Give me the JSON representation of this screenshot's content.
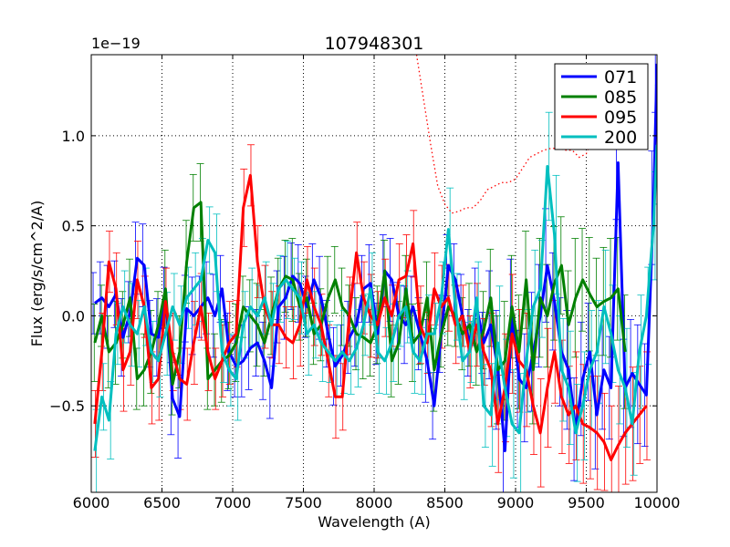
{
  "chart_data": {
    "type": "line",
    "title": "107948301",
    "xlabel": "Wavelength (A)",
    "ylabel": "Flux (erg/s/cm^2/A)",
    "offset_label": "1e−19",
    "xlim": [
      6000,
      10000
    ],
    "ylim": [
      -0.98,
      1.45
    ],
    "x_ticks": [
      6000,
      6500,
      7000,
      7500,
      8000,
      8500,
      9000,
      9500,
      10000
    ],
    "x_tick_labels": [
      "6000",
      "6500",
      "7000",
      "7500",
      "8000",
      "8500",
      "9000",
      "9500",
      "10000"
    ],
    "y_ticks": [
      -0.5,
      0.0,
      0.5,
      1.0
    ],
    "y_tick_labels": [
      "−0.5",
      "0.0",
      "0.5",
      "1.0"
    ],
    "grid": true,
    "legend_position": "top-right",
    "series": [
      {
        "name": "071",
        "color": "#0000ff",
        "x": [
          6025,
          6075,
          6125,
          6175,
          6225,
          6275,
          6325,
          6375,
          6425,
          6475,
          6525,
          6575,
          6625,
          6675,
          6725,
          6775,
          6825,
          6875,
          6925,
          6975,
          7025,
          7075,
          7125,
          7175,
          7225,
          7275,
          7325,
          7375,
          7425,
          7475,
          7525,
          7575,
          7625,
          7675,
          7725,
          7775,
          7825,
          7875,
          7925,
          7975,
          8025,
          8075,
          8125,
          8175,
          8225,
          8275,
          8325,
          8375,
          8425,
          8475,
          8525,
          8575,
          8625,
          8675,
          8725,
          8775,
          8825,
          8875,
          8925,
          8975,
          9025,
          9075,
          9125,
          9175,
          9225,
          9275,
          9325,
          9375,
          9425,
          9475,
          9525,
          9575,
          9625,
          9675,
          9725,
          9775,
          9825,
          9875,
          9925,
          9975,
          10000
        ],
        "y": [
          0.07,
          0.1,
          0.05,
          0.12,
          -0.12,
          0.02,
          0.32,
          0.28,
          -0.1,
          -0.12,
          0.1,
          -0.46,
          -0.56,
          0.04,
          0.0,
          0.05,
          0.1,
          0.0,
          0.15,
          -0.2,
          -0.28,
          -0.25,
          -0.18,
          -0.15,
          -0.25,
          -0.4,
          0.05,
          0.1,
          0.22,
          0.18,
          0.05,
          0.2,
          0.1,
          -0.1,
          -0.28,
          -0.22,
          -0.12,
          -0.05,
          0.15,
          0.18,
          -0.1,
          0.25,
          0.2,
          0.0,
          -0.05,
          0.05,
          -0.1,
          -0.25,
          -0.5,
          -0.1,
          0.28,
          0.2,
          0.0,
          -0.15,
          0.05,
          -0.15,
          -0.05,
          -0.3,
          -0.75,
          0.0,
          -0.35,
          -0.4,
          -0.2,
          0.0,
          0.28,
          0.08,
          -0.2,
          -0.3,
          -0.63,
          -0.35,
          -0.2,
          -0.55,
          -0.3,
          -0.4,
          0.85,
          -0.4,
          -0.32,
          -0.38,
          -0.44,
          0.6,
          1.4
        ]
      },
      {
        "name": "085",
        "color": "#008000",
        "x": [
          6025,
          6075,
          6125,
          6175,
          6225,
          6275,
          6325,
          6375,
          6425,
          6475,
          6525,
          6575,
          6625,
          6675,
          6725,
          6775,
          6825,
          6875,
          6925,
          6975,
          7025,
          7075,
          7125,
          7175,
          7225,
          7275,
          7325,
          7375,
          7425,
          7475,
          7525,
          7575,
          7625,
          7675,
          7725,
          7775,
          7825,
          7875,
          7925,
          7975,
          8025,
          8075,
          8125,
          8175,
          8225,
          8275,
          8325,
          8375,
          8425,
          8475,
          8525,
          8575,
          8625,
          8675,
          8725,
          8775,
          8825,
          8875,
          8925,
          8975,
          9025,
          9075,
          9125,
          9175,
          9225,
          9275,
          9325,
          9375,
          9425,
          9475,
          9525,
          9575,
          9625,
          9675,
          9725,
          9775
        ],
        "y": [
          -0.15,
          0.0,
          -0.2,
          -0.15,
          -0.05,
          0.1,
          -0.35,
          -0.3,
          -0.2,
          -0.05,
          0.15,
          -0.38,
          -0.2,
          0.3,
          0.6,
          0.63,
          -0.35,
          -0.3,
          -0.25,
          -0.22,
          -0.15,
          0.05,
          0.0,
          -0.05,
          -0.15,
          0.0,
          0.15,
          0.22,
          0.2,
          0.05,
          0.1,
          -0.1,
          -0.05,
          0.1,
          0.2,
          0.05,
          0.0,
          -0.1,
          -0.12,
          -0.15,
          -0.05,
          0.25,
          -0.25,
          -0.15,
          0.15,
          -0.15,
          -0.1,
          0.1,
          -0.3,
          -0.1,
          0.05,
          0.0,
          -0.1,
          -0.05,
          -0.2,
          -0.08,
          0.1,
          -0.3,
          -0.25,
          0.05,
          -0.2,
          0.2,
          -0.3,
          0.1,
          0.0,
          0.18,
          0.28,
          -0.05,
          0.1,
          0.2,
          0.12,
          0.05,
          0.08,
          0.1,
          0.15,
          -0.2
        ]
      },
      {
        "name": "095",
        "color": "#ff0000",
        "x": [
          6025,
          6075,
          6125,
          6175,
          6225,
          6275,
          6325,
          6375,
          6425,
          6475,
          6525,
          6575,
          6625,
          6675,
          6725,
          6775,
          6825,
          6875,
          6925,
          6975,
          7025,
          7075,
          7125,
          7175,
          7225,
          7275,
          7325,
          7375,
          7425,
          7475,
          7525,
          7575,
          7625,
          7675,
          7725,
          7775,
          7825,
          7875,
          7925,
          7975,
          8025,
          8075,
          8125,
          8175,
          8225,
          8275,
          8325,
          8375,
          8425,
          8475,
          8525,
          8575,
          8625,
          8675,
          8725,
          8775,
          8825,
          8875,
          8925,
          8975,
          9025,
          9075,
          9125,
          9175,
          9225,
          9275,
          9325,
          9375,
          9425,
          9475,
          9525,
          9575,
          9625,
          9675,
          9725,
          9775,
          9825,
          9875,
          9925
        ],
        "y": [
          -0.6,
          -0.2,
          0.3,
          0.15,
          -0.3,
          -0.2,
          0.2,
          0.05,
          -0.4,
          -0.35,
          0.08,
          -0.2,
          -0.35,
          -0.38,
          -0.15,
          0.05,
          -0.2,
          -0.35,
          -0.25,
          -0.15,
          -0.1,
          0.6,
          0.78,
          0.3,
          0.05,
          -0.05,
          -0.05,
          -0.12,
          -0.15,
          -0.05,
          0.2,
          0.05,
          -0.05,
          -0.25,
          -0.45,
          -0.45,
          0.0,
          0.35,
          0.1,
          0.0,
          -0.05,
          0.1,
          0.0,
          0.2,
          0.22,
          0.4,
          -0.05,
          -0.15,
          0.15,
          0.05,
          0.1,
          -0.05,
          0.0,
          -0.2,
          -0.05,
          -0.2,
          -0.3,
          -0.6,
          -0.4,
          -0.1,
          -0.25,
          -0.3,
          -0.5,
          -0.65,
          -0.4,
          -0.2,
          -0.45,
          -0.55,
          -0.5,
          -0.6,
          -0.62,
          -0.65,
          -0.7,
          -0.8,
          -0.72,
          -0.65,
          -0.6,
          -0.55,
          -0.5
        ]
      },
      {
        "name": "200",
        "color": "#00bfbf",
        "x": [
          6025,
          6075,
          6125,
          6175,
          6225,
          6275,
          6325,
          6375,
          6425,
          6475,
          6525,
          6575,
          6625,
          6675,
          6725,
          6775,
          6825,
          6875,
          6925,
          6975,
          7025,
          7075,
          7125,
          7175,
          7225,
          7275,
          7325,
          7375,
          7425,
          7475,
          7525,
          7575,
          7625,
          7675,
          7725,
          7775,
          7825,
          7875,
          7925,
          7975,
          8025,
          8075,
          8125,
          8175,
          8225,
          8275,
          8325,
          8375,
          8425,
          8475,
          8525,
          8575,
          8625,
          8675,
          8725,
          8775,
          8825,
          8875,
          8925,
          8975,
          9025,
          9075,
          9125,
          9175,
          9225,
          9275,
          9325,
          9375,
          9425,
          9475,
          9525,
          9575,
          9625,
          9675,
          9725,
          9775,
          9825,
          9875,
          9925,
          9975,
          10000
        ],
        "y": [
          -0.75,
          -0.45,
          -0.58,
          -0.1,
          0.05,
          -0.05,
          -0.1,
          0.05,
          -0.2,
          -0.25,
          -0.1,
          0.05,
          -0.05,
          0.1,
          0.15,
          0.2,
          0.42,
          0.35,
          -0.2,
          -0.3,
          -0.35,
          -0.05,
          0.05,
          0.0,
          0.1,
          -0.05,
          0.15,
          0.2,
          0.15,
          0.1,
          -0.1,
          -0.05,
          -0.15,
          -0.2,
          -0.25,
          -0.2,
          -0.25,
          -0.18,
          -0.05,
          0.15,
          -0.2,
          -0.25,
          -0.15,
          0.0,
          0.05,
          -0.2,
          -0.25,
          -0.1,
          -0.1,
          0.1,
          0.48,
          0.05,
          -0.25,
          -0.2,
          0.1,
          -0.5,
          -0.55,
          -0.15,
          -0.4,
          -0.6,
          -0.65,
          -0.25,
          0.05,
          0.15,
          0.83,
          0.45,
          -0.3,
          -0.4,
          -0.65,
          -0.5,
          -0.3,
          -0.2,
          0.05,
          -0.1,
          -0.3,
          -0.4,
          -0.6,
          -0.2,
          0.0,
          0.5,
          0.95
        ]
      }
    ],
    "extra_curve": {
      "style": "dotted",
      "color": "#ff0000",
      "x": [
        8300,
        8350,
        8400,
        8450,
        8500,
        8550,
        8600,
        8650,
        8700,
        8750,
        8800,
        8850,
        8900,
        8950,
        9000,
        9050,
        9100,
        9150,
        9200,
        9250,
        9300,
        9350,
        9400,
        9450,
        9500,
        9550
      ],
      "y": [
        1.45,
        1.2,
        0.95,
        0.72,
        0.62,
        0.57,
        0.58,
        0.6,
        0.6,
        0.64,
        0.7,
        0.72,
        0.74,
        0.74,
        0.76,
        0.82,
        0.88,
        0.9,
        0.92,
        0.93,
        0.93,
        0.92,
        0.92,
        0.88,
        0.9,
        1.0
      ]
    }
  }
}
